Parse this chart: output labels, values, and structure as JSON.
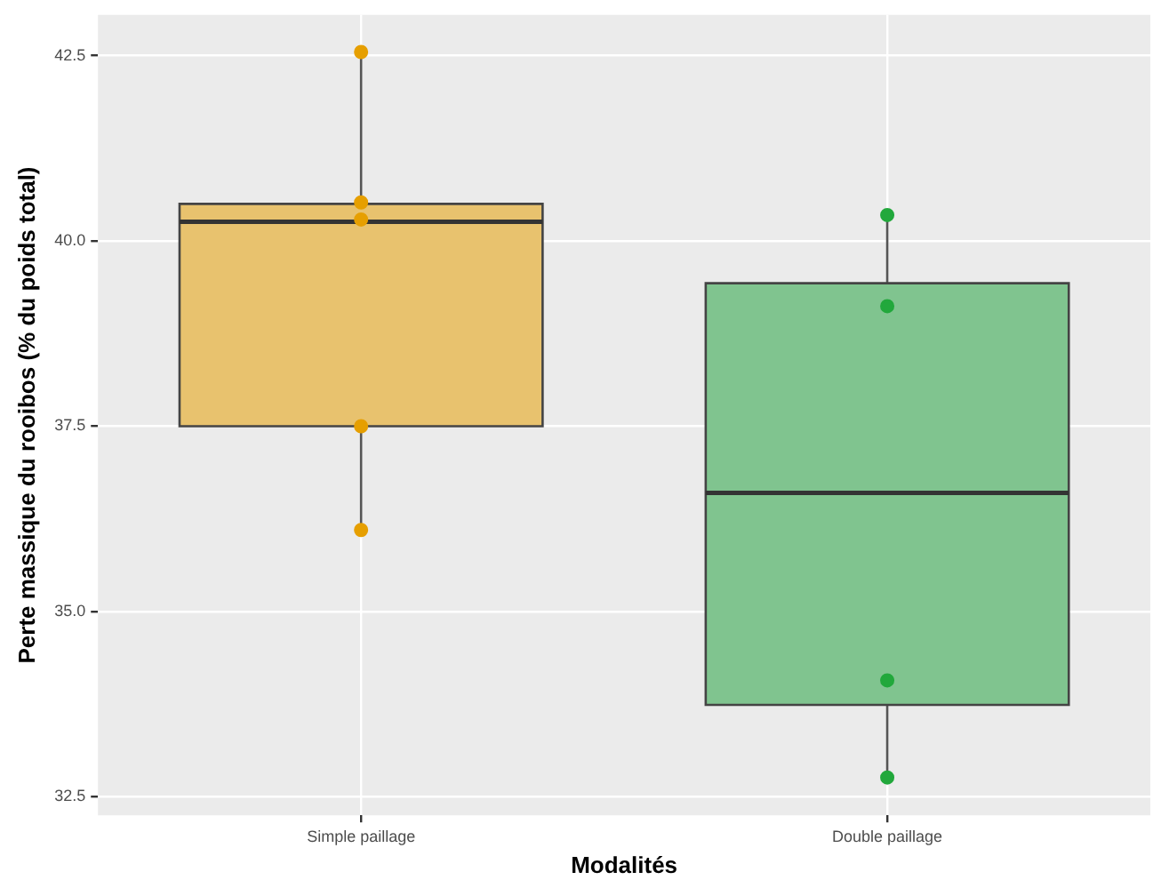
{
  "chart_data": {
    "type": "box",
    "xlabel": "Modalités",
    "ylabel": "Perte massique du rooibos (% du poids total)",
    "categories": [
      "Simple paillage",
      "Double paillage"
    ],
    "ylim": [
      32.25,
      43.05
    ],
    "yticks": [
      {
        "value": 32.5,
        "label": "32.5"
      },
      {
        "value": 35,
        "label": "35.0"
      },
      {
        "value": 37.5,
        "label": "37.5"
      },
      {
        "value": 40,
        "label": "40.0"
      },
      {
        "value": 42.5,
        "label": "42.5"
      }
    ],
    "grid": true,
    "legend": false,
    "series": [
      {
        "type": "box",
        "colors": [
          "#e8c26e",
          "#80c48f"
        ],
        "boxes": [
          {
            "low": 36.1,
            "q1": 37.5,
            "median": 40.26,
            "q3": 40.5,
            "high": 42.55
          },
          {
            "low": 32.76,
            "q1": 33.74,
            "median": 36.6,
            "q3": 39.43,
            "high": 40.35
          }
        ]
      },
      {
        "type": "scatter",
        "color": "#e69f00",
        "x": [
          "Simple paillage",
          "Simple paillage",
          "Simple paillage",
          "Simple paillage",
          "Simple paillage"
        ],
        "values": [
          42.55,
          40.52,
          40.29,
          37.5,
          36.1
        ]
      },
      {
        "type": "scatter",
        "color": "#22a83c",
        "x": [
          "Double paillage",
          "Double paillage",
          "Double paillage",
          "Double paillage"
        ],
        "values": [
          40.35,
          39.12,
          34.07,
          32.76
        ]
      }
    ]
  }
}
